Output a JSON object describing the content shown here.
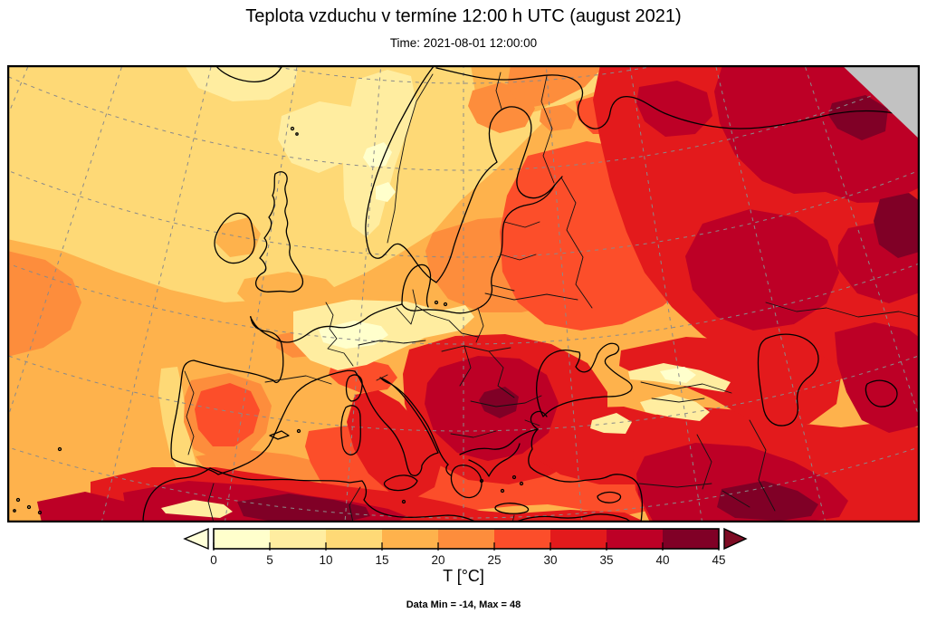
{
  "title": "Teplota vzduchu v termíne 12:00 h UTC (august 2021)",
  "subtitle": "Time: 2021-08-01 12:00:00",
  "annotation": "Data Min = -14, Max = 48",
  "colorbar": {
    "label": "T [°C]",
    "ticks": [
      0,
      5,
      10,
      15,
      20,
      25,
      30,
      35,
      40,
      45
    ],
    "segment_colors": [
      "#FFFFCC",
      "#FFEDA0",
      "#FED976",
      "#FEB24C",
      "#FD8D3C",
      "#FC4E2A",
      "#E31A1C",
      "#BD0026",
      "#800026"
    ],
    "under_arrow_color": "#FFFFD8",
    "over_arrow_color": "#7E0C24"
  },
  "map": {
    "nodata_color": "#C2C2C2",
    "graticule_color": "#8A8A8A",
    "coastline_color": "#000000",
    "border_color": "#111111",
    "frame_color": "#000000"
  },
  "chart_data": {
    "type": "heatmap",
    "title": "Teplota vzduchu v termíne 12:00 h UTC (august 2021)",
    "time": "2021-08-01 12:00:00",
    "region": "Europe",
    "variable": "air temperature",
    "units": "°C",
    "colorbar_ticks": [
      0,
      5,
      10,
      15,
      20,
      25,
      30,
      35,
      40,
      45
    ],
    "palette": [
      "#FFFFCC",
      "#FFEDA0",
      "#FED976",
      "#FEB24C",
      "#FD8D3C",
      "#FC4E2A",
      "#E31A1C",
      "#BD0026",
      "#800026"
    ],
    "data_min": -14,
    "data_max": 48,
    "estimated_values_c": {
      "north_atlantic": 13,
      "norwegian_mountains": 7,
      "alps": 4,
      "british_isles": 16,
      "france_central_europe": 19,
      "baltic_scandinavia_south": 18,
      "iberia_interior": 27,
      "western_mediterranean": 23,
      "eastern_mediterranean": 27,
      "balkans_core": 37,
      "ukraine_west_russia": 31,
      "volga_don_region": 38,
      "northeast_russia": 42,
      "caucasus_highlands": 9,
      "anatolia_interior": 33,
      "north_africa": 38,
      "algeria_interior": 43,
      "syria_iraq": 42
    }
  }
}
